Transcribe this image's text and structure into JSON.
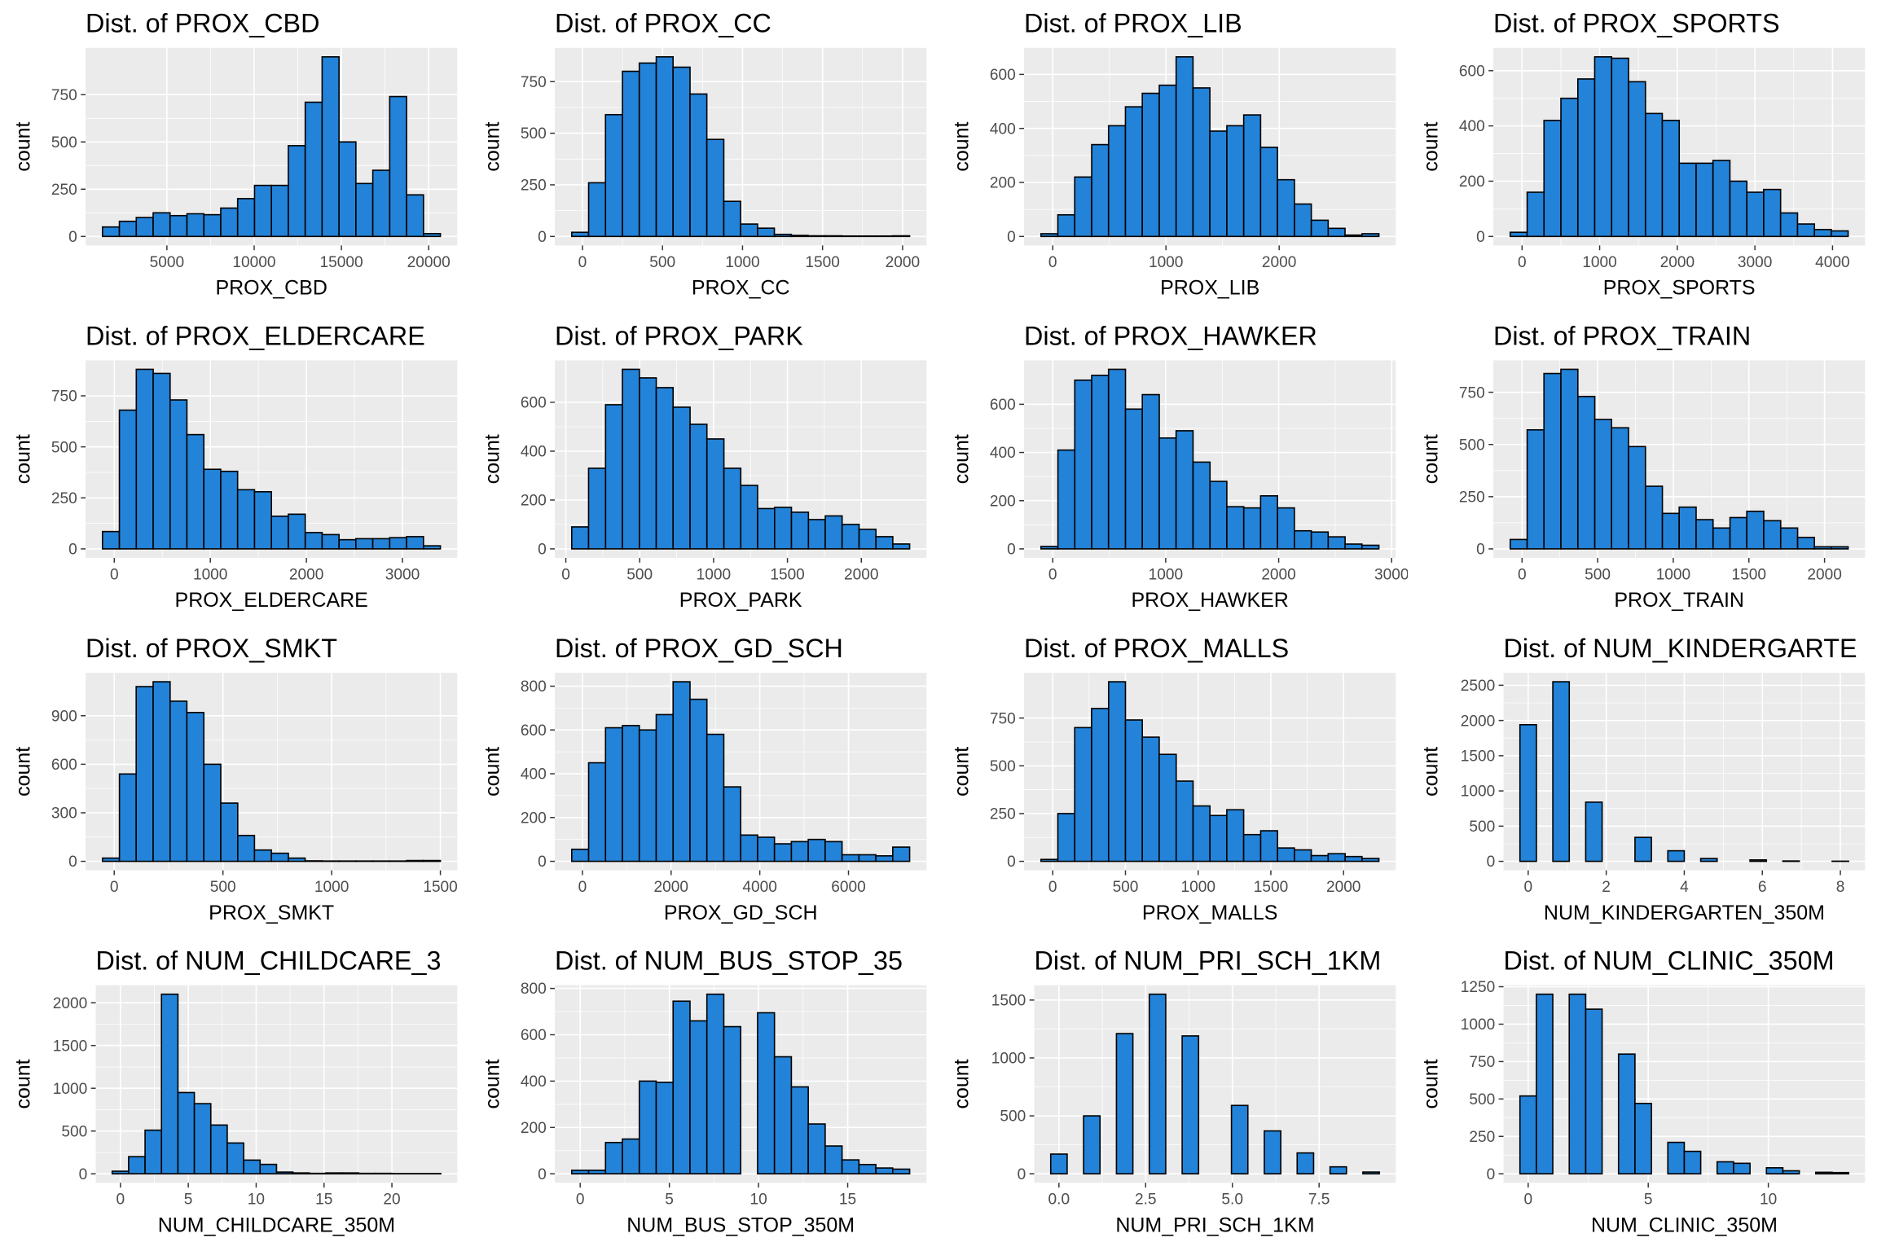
{
  "chart_data": [
    {
      "type": "histogram",
      "title": "Dist. of PROX_CBD",
      "x_label": "PROX_CBD",
      "y_label": "count",
      "color": "#2383d8",
      "grid": true,
      "bins": [
        1310,
        2278,
        3246,
        4214,
        5182,
        6150,
        7118,
        8086,
        9054,
        10022,
        10990,
        11958,
        12926,
        13894,
        14862,
        15830,
        16798,
        17766,
        18734,
        19702,
        20670
      ],
      "values": [
        50,
        80,
        100,
        125,
        110,
        120,
        115,
        150,
        200,
        270,
        270,
        480,
        710,
        950,
        500,
        280,
        350,
        740,
        220,
        15
      ],
      "xlim": [
        342,
        21638
      ],
      "ylim": [
        -47.5,
        997.5
      ],
      "xticks": [
        5000,
        10000,
        15000,
        20000
      ],
      "yticks": [
        0,
        250,
        500,
        750
      ]
    },
    {
      "type": "histogram",
      "title": "Dist. of PROX_CC",
      "x_label": "PROX_CC",
      "y_label": "count",
      "color": "#2383d8",
      "grid": true,
      "bins": [
        -67,
        38.5,
        144,
        250,
        355,
        461,
        566,
        672,
        777,
        883,
        988,
        1094,
        1199,
        1305,
        1410,
        1516,
        1621,
        1727,
        1832,
        1938,
        2044
      ],
      "values": [
        20,
        260,
        590,
        800,
        840,
        870,
        820,
        690,
        470,
        170,
        60,
        40,
        10,
        5,
        3,
        3,
        2,
        2,
        2,
        3
      ],
      "xlim": [
        -172.6,
        2149.6
      ],
      "ylim": [
        -43.5,
        913.5
      ],
      "xticks": [
        0,
        500,
        1000,
        1500,
        2000
      ],
      "yticks": [
        0,
        250,
        500,
        750
      ]
    },
    {
      "type": "histogram",
      "title": "Dist. of PROX_LIB",
      "x_label": "PROX_LIB",
      "y_label": "count",
      "color": "#2383d8",
      "grid": true,
      "bins": [
        -104,
        45,
        194,
        344,
        493,
        642,
        791,
        941,
        1090,
        1239,
        1388,
        1538,
        1687,
        1836,
        1985,
        2135,
        2284,
        2433,
        2582,
        2732,
        2881
      ],
      "values": [
        10,
        80,
        220,
        340,
        410,
        480,
        530,
        560,
        665,
        550,
        390,
        410,
        450,
        330,
        210,
        120,
        60,
        30,
        5,
        10
      ],
      "xlim": [
        -253.25,
        3030.25
      ],
      "ylim": [
        -33.25,
        698.25
      ],
      "xticks": [
        0,
        1000,
        2000
      ],
      "yticks": [
        0,
        200,
        400,
        600
      ]
    },
    {
      "type": "histogram",
      "title": "Dist. of PROX_SPORTS",
      "x_label": "PROX_SPORTS",
      "y_label": "count",
      "color": "#2383d8",
      "grid": true,
      "bins": [
        -152,
        66,
        283,
        501,
        719,
        936,
        1154,
        1372,
        1590,
        1807,
        2025,
        2243,
        2460,
        2678,
        2896,
        3113,
        3331,
        3549,
        3767,
        3984,
        4201
      ],
      "values": [
        15,
        160,
        420,
        500,
        570,
        650,
        645,
        560,
        445,
        420,
        265,
        265,
        275,
        200,
        160,
        170,
        85,
        45,
        25,
        20
      ],
      "xlim": [
        -369.65,
        4418.65
      ],
      "ylim": [
        -32.5,
        682.5
      ],
      "xticks": [
        0,
        1000,
        2000,
        3000,
        4000
      ],
      "yticks": [
        0,
        200,
        400,
        600
      ]
    },
    {
      "type": "histogram",
      "title": "Dist. of PROX_ELDERCARE",
      "x_label": "PROX_ELDERCARE",
      "y_label": "count",
      "color": "#2383d8",
      "grid": true,
      "bins": [
        -123,
        53,
        229,
        405,
        581,
        756,
        932,
        1108,
        1284,
        1460,
        1636,
        1812,
        1988,
        2164,
        2340,
        2515,
        2691,
        2867,
        3043,
        3219,
        3395
      ],
      "values": [
        85,
        680,
        880,
        860,
        730,
        560,
        390,
        380,
        290,
        280,
        160,
        170,
        80,
        70,
        45,
        50,
        50,
        55,
        60,
        15
      ],
      "xlim": [
        -298.9,
        3570.9
      ],
      "ylim": [
        -44,
        924
      ],
      "xticks": [
        0,
        1000,
        2000,
        3000
      ],
      "yticks": [
        0,
        250,
        500,
        750
      ]
    },
    {
      "type": "histogram",
      "title": "Dist. of PROX_PARK",
      "x_label": "PROX_PARK",
      "y_label": "count",
      "color": "#2383d8",
      "grid": true,
      "bins": [
        40,
        154,
        269,
        383,
        498,
        612,
        726,
        841,
        955,
        1070,
        1184,
        1298,
        1413,
        1527,
        1642,
        1756,
        1870,
        1985,
        2099,
        2213,
        2327
      ],
      "values": [
        90,
        330,
        590,
        735,
        700,
        660,
        580,
        510,
        450,
        330,
        260,
        165,
        170,
        150,
        120,
        135,
        100,
        80,
        50,
        20
      ],
      "xlim": [
        -74.35,
        2441.35
      ],
      "ylim": [
        -36.75,
        771.75
      ],
      "xticks": [
        0,
        500,
        1000,
        1500,
        2000
      ],
      "yticks": [
        0,
        200,
        400,
        600
      ]
    },
    {
      "type": "histogram",
      "title": "Dist. of PROX_HAWKER",
      "x_label": "PROX_HAWKER",
      "y_label": "count",
      "color": "#2383d8",
      "grid": true,
      "bins": [
        -104,
        46,
        195,
        345,
        494,
        644,
        793,
        943,
        1092,
        1242,
        1392,
        1541,
        1691,
        1840,
        1990,
        2139,
        2289,
        2438,
        2588,
        2737,
        2887
      ],
      "values": [
        10,
        410,
        700,
        720,
        745,
        580,
        640,
        460,
        490,
        360,
        280,
        175,
        170,
        220,
        170,
        75,
        70,
        50,
        20,
        15
      ],
      "xlim": [
        -253.55,
        3036.55
      ],
      "ylim": [
        -37.25,
        782.25
      ],
      "xticks": [
        0,
        1000,
        2000,
        3000
      ],
      "yticks": [
        0,
        200,
        400,
        600
      ]
    },
    {
      "type": "histogram",
      "title": "Dist. of PROX_TRAIN",
      "x_label": "PROX_TRAIN",
      "y_label": "count",
      "color": "#2383d8",
      "grid": true,
      "bins": [
        -78,
        34,
        145,
        257,
        369,
        481,
        592,
        704,
        816,
        928,
        1039,
        1151,
        1263,
        1375,
        1486,
        1598,
        1710,
        1822,
        1933,
        2045,
        2156
      ],
      "values": [
        45,
        570,
        840,
        860,
        730,
        620,
        580,
        490,
        300,
        170,
        200,
        140,
        100,
        150,
        180,
        135,
        100,
        55,
        10,
        10
      ],
      "xlim": [
        -189.7,
        2267.7
      ],
      "ylim": [
        -43,
        903
      ],
      "xticks": [
        0,
        500,
        1000,
        1500,
        2000
      ],
      "yticks": [
        0,
        250,
        500,
        750
      ]
    },
    {
      "type": "histogram",
      "title": "Dist. of PROX_SMKT",
      "x_label": "PROX_SMKT",
      "y_label": "count",
      "color": "#2383d8",
      "grid": true,
      "bins": [
        -54,
        24,
        101,
        179,
        257,
        334,
        412,
        490,
        568,
        645,
        723,
        801,
        878,
        956,
        1034,
        1111,
        1189,
        1267,
        1345,
        1422,
        1500
      ],
      "values": [
        20,
        540,
        1080,
        1110,
        990,
        920,
        600,
        360,
        160,
        70,
        50,
        20,
        3,
        2,
        2,
        2,
        2,
        2,
        5,
        5
      ],
      "xlim": [
        -131.7,
        1577.7
      ],
      "ylim": [
        -55.5,
        1165.5
      ],
      "xticks": [
        0,
        500,
        1000,
        1500
      ],
      "yticks": [
        0,
        300,
        600,
        900
      ]
    },
    {
      "type": "histogram",
      "title": "Dist. of PROX_GD_SCH",
      "x_label": "PROX_GD_SCH",
      "y_label": "count",
      "color": "#2383d8",
      "grid": true,
      "bins": [
        -241,
        140,
        521,
        902,
        1283,
        1664,
        2045,
        2426,
        2807,
        3188,
        3569,
        3950,
        4331,
        4712,
        5093,
        5474,
        5855,
        6236,
        6617,
        6998,
        7379
      ],
      "values": [
        55,
        450,
        610,
        620,
        600,
        670,
        820,
        740,
        580,
        340,
        120,
        110,
        80,
        90,
        100,
        90,
        30,
        30,
        25,
        65
      ],
      "xlim": [
        -622,
        7760
      ],
      "ylim": [
        -41,
        861
      ],
      "xticks": [
        0,
        2000,
        4000,
        6000
      ],
      "yticks": [
        0,
        200,
        400,
        600,
        800
      ]
    },
    {
      "type": "histogram",
      "title": "Dist. of PROX_MALLS",
      "x_label": "PROX_MALLS",
      "y_label": "count",
      "color": "#2383d8",
      "grid": true,
      "bins": [
        -81,
        35,
        151,
        267,
        384,
        500,
        616,
        732,
        849,
        965,
        1081,
        1197,
        1313,
        1430,
        1546,
        1662,
        1778,
        1894,
        2011,
        2127,
        2243
      ],
      "values": [
        10,
        250,
        700,
        800,
        940,
        740,
        650,
        560,
        420,
        290,
        240,
        270,
        140,
        160,
        70,
        60,
        30,
        40,
        25,
        15
      ],
      "xlim": [
        -197.2,
        2359.2
      ],
      "ylim": [
        -47,
        987
      ],
      "xticks": [
        0,
        500,
        1000,
        1500,
        2000
      ],
      "yticks": [
        0,
        250,
        500,
        750
      ]
    },
    {
      "type": "histogram",
      "title": "Dist. of NUM_KINDERGARTE",
      "x_label": "NUM_KINDERGARTEN_350M",
      "y_label": "count",
      "color": "#2383d8",
      "grid": true,
      "bins": [
        -0.211,
        0.211,
        0.632,
        1.053,
        1.474,
        1.895,
        2.316,
        2.737,
        3.158,
        3.579,
        4.0,
        4.421,
        4.842,
        5.263,
        5.684,
        6.105,
        6.526,
        6.947,
        7.368,
        7.789,
        8.211
      ],
      "values": [
        1940,
        0,
        2550,
        0,
        840,
        0,
        0,
        340,
        0,
        150,
        0,
        40,
        0,
        0,
        20,
        0,
        5,
        0,
        0,
        2
      ],
      "xlim": [
        -0.632,
        8.632
      ],
      "ylim": [
        -127.5,
        2677.5
      ],
      "xticks": [
        0,
        2,
        4,
        6,
        8
      ],
      "yticks": [
        0,
        500,
        1000,
        1500,
        2000,
        2500
      ]
    },
    {
      "type": "histogram",
      "title": "Dist. of NUM_CHILDCARE_3",
      "x_label": "NUM_CHILDCARE_350M",
      "y_label": "count",
      "color": "#2383d8",
      "grid": true,
      "bins": [
        -0.605,
        0.605,
        1.816,
        3.026,
        4.237,
        5.447,
        6.658,
        7.868,
        9.079,
        10.289,
        11.5,
        12.71,
        13.921,
        15.132,
        16.342,
        17.553,
        18.763,
        19.974,
        21.184,
        22.395,
        23.605
      ],
      "values": [
        30,
        200,
        510,
        2100,
        950,
        820,
        570,
        360,
        160,
        110,
        20,
        10,
        5,
        10,
        10,
        5,
        5,
        2,
        2,
        2
      ],
      "xlim": [
        -1.816,
        24.816
      ],
      "ylim": [
        -105,
        2205
      ],
      "xticks": [
        0,
        5,
        10,
        15,
        20
      ],
      "yticks": [
        0,
        500,
        1000,
        1500,
        2000
      ]
    },
    {
      "type": "histogram",
      "title": "Dist. of NUM_BUS_STOP_35",
      "x_label": "NUM_BUS_STOP_350M",
      "y_label": "count",
      "color": "#2383d8",
      "grid": true,
      "bins": [
        -0.474,
        0.474,
        1.421,
        2.368,
        3.316,
        4.263,
        5.211,
        6.158,
        7.105,
        8.053,
        9.0,
        9.947,
        10.895,
        11.842,
        12.789,
        13.737,
        14.684,
        15.632,
        16.579,
        17.526,
        18.474
      ],
      "values": [
        15,
        15,
        135,
        150,
        400,
        395,
        745,
        660,
        775,
        635,
        0,
        695,
        505,
        375,
        215,
        120,
        60,
        40,
        25,
        20
      ],
      "xlim": [
        -1.421,
        19.421
      ],
      "ylim": [
        -38.75,
        813.75
      ],
      "xticks": [
        0,
        5,
        10,
        15
      ],
      "yticks": [
        0,
        200,
        400,
        600,
        800
      ]
    },
    {
      "type": "histogram",
      "title": "Dist. of NUM_PRI_SCH_1KM",
      "x_label": "NUM_PRI_SCH_1KM",
      "y_label": "count",
      "color": "#2383d8",
      "grid": true,
      "bins": [
        -0.237,
        0.237,
        0.711,
        1.184,
        1.658,
        2.132,
        2.605,
        3.079,
        3.553,
        4.026,
        4.5,
        4.974,
        5.447,
        5.921,
        6.395,
        6.868,
        7.342,
        7.816,
        8.289,
        8.763,
        9.237
      ],
      "values": [
        170,
        0,
        500,
        0,
        1210,
        0,
        1550,
        0,
        1190,
        0,
        0,
        590,
        0,
        370,
        0,
        180,
        0,
        60,
        0,
        15
      ],
      "xlim": [
        -0.711,
        9.711
      ],
      "ylim": [
        -77.5,
        1627.5
      ],
      "xticks": [
        {
          "value": 0,
          "label": "0.0"
        },
        2.5,
        {
          "value": 5,
          "label": "5.0"
        },
        7.5
      ],
      "yticks": [
        0,
        500,
        1000,
        1500
      ]
    },
    {
      "type": "histogram",
      "title": "Dist. of NUM_CLINIC_350M",
      "x_label": "NUM_CLINIC_350M",
      "y_label": "count",
      "color": "#2383d8",
      "grid": true,
      "bins": [
        -0.342,
        0.342,
        1.026,
        1.711,
        2.395,
        3.079,
        3.763,
        4.447,
        5.132,
        5.816,
        6.5,
        7.184,
        7.868,
        8.553,
        9.237,
        9.921,
        10.605,
        11.289,
        11.974,
        12.658,
        13.342
      ],
      "values": [
        520,
        1200,
        0,
        1200,
        1100,
        0,
        800,
        470,
        0,
        210,
        150,
        0,
        80,
        70,
        0,
        40,
        20,
        0,
        10,
        8
      ],
      "xlim": [
        -1.026,
        14.026
      ],
      "ylim": [
        -60,
        1260
      ],
      "xticks": [
        0,
        5,
        10
      ],
      "yticks": [
        0,
        250,
        500,
        750,
        1000,
        1250
      ]
    }
  ]
}
